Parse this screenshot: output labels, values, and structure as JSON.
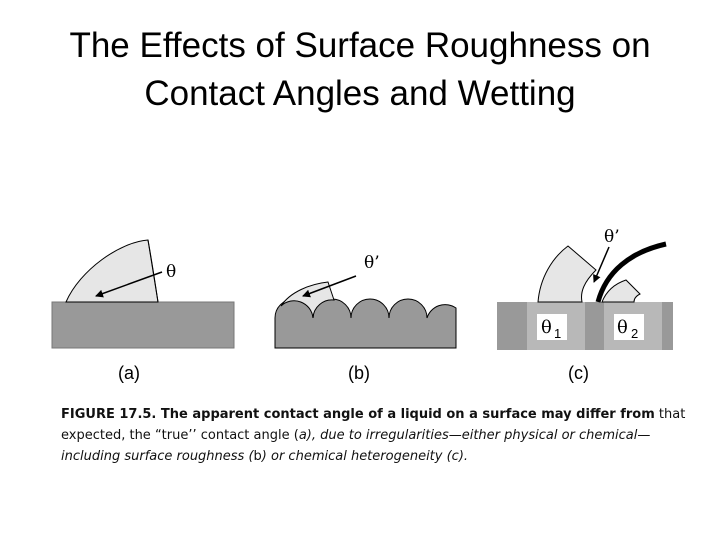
{
  "title": {
    "line1": "The Effects of Surface Roughness on",
    "line2": "Contact Angles and Wetting"
  },
  "figure": {
    "panels": [
      {
        "id": "a",
        "label": "(a)",
        "angle_label": "θ"
      },
      {
        "id": "b",
        "label": "(b)",
        "angle_label": "θ’"
      },
      {
        "id": "c",
        "label": "(c)",
        "angle_label": "θ’",
        "region_labels": [
          {
            "symbol": "θ",
            "subscript": "1"
          },
          {
            "symbol": "θ",
            "subscript": "2"
          }
        ]
      }
    ],
    "colors": {
      "substrate": "#999999",
      "substrate_light": "#b8b8b8",
      "drop": "#e6e6e6",
      "outline": "#000000"
    }
  },
  "caption": {
    "bold": "FIGURE 17.5. The apparent contact angle of a liquid on a surface may differ from",
    "plain1": "that expected, the “true’’ contact angle (",
    "italic1": "a), due to irregularities—either physical or chemical—including surface roughness (",
    "plain2": "b",
    "italic2": ") or chemical heterogeneity (c)."
  }
}
